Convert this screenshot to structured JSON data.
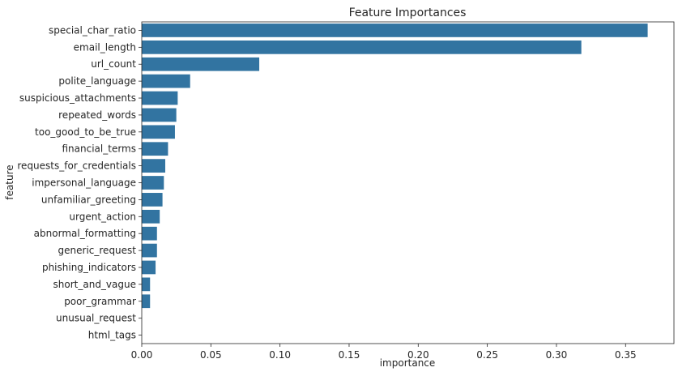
{
  "chart_data": {
    "type": "bar",
    "orientation": "horizontal",
    "title": "Feature Importances",
    "xlabel": "importance",
    "ylabel": "feature",
    "xlim": [
      0.0,
      0.385
    ],
    "xticks": [
      "0.00",
      "0.05",
      "0.10",
      "0.15",
      "0.20",
      "0.25",
      "0.30",
      "0.35"
    ],
    "xtick_values": [
      0.0,
      0.05,
      0.1,
      0.15,
      0.2,
      0.25,
      0.3,
      0.35
    ],
    "bar_color": "#3274a1",
    "grid": false,
    "categories": [
      "special_char_ratio",
      "email_length",
      "url_count",
      "polite_language",
      "suspicious_attachments",
      "repeated_words",
      "too_good_to_be_true",
      "financial_terms",
      "requests_for_credentials",
      "impersonal_language",
      "unfamiliar_greeting",
      "urgent_action",
      "abnormal_formatting",
      "generic_request",
      "phishing_indicators",
      "short_and_vague",
      "poor_grammar",
      "unusual_request",
      "html_tags"
    ],
    "values": [
      0.366,
      0.318,
      0.085,
      0.035,
      0.026,
      0.025,
      0.024,
      0.019,
      0.017,
      0.016,
      0.015,
      0.013,
      0.011,
      0.011,
      0.01,
      0.006,
      0.006,
      0.0,
      0.0
    ]
  }
}
